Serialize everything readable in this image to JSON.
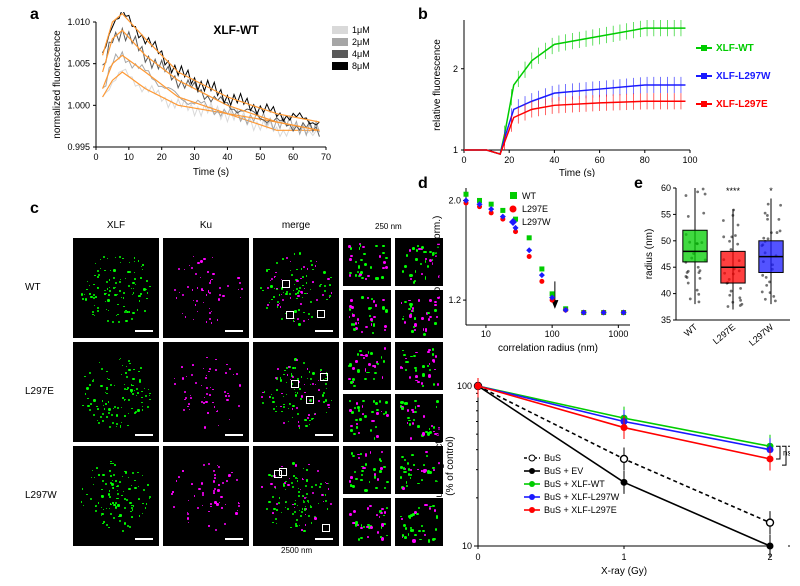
{
  "panel_a": {
    "label": "a",
    "title": "XLF-WT",
    "xlabel": "Time (s)",
    "ylabel": "normalized fluorescence",
    "xlim": [
      0,
      70
    ],
    "xtick_step": 10,
    "ylim": [
      0.995,
      1.01
    ],
    "yticks": [
      0.995,
      1.0,
      1.005,
      1.01
    ],
    "conc_labels": [
      "1μM",
      "2μM",
      "4μM",
      "8μM"
    ],
    "conc_colors": [
      "#d9d9d9",
      "#a6a6a6",
      "#595959",
      "#000000"
    ],
    "fit_color": "#ff9933",
    "series": {
      "1uM": [
        [
          2,
          1.001
        ],
        [
          5,
          1.003
        ],
        [
          8,
          1.004
        ],
        [
          15,
          1.002
        ],
        [
          25,
          1.0
        ],
        [
          40,
          0.999
        ],
        [
          55,
          0.997
        ],
        [
          68,
          0.997
        ]
      ],
      "2uM": [
        [
          2,
          1.002
        ],
        [
          5,
          1.005
        ],
        [
          8,
          1.006
        ],
        [
          15,
          1.004
        ],
        [
          25,
          1.001
        ],
        [
          40,
          0.999
        ],
        [
          55,
          0.998
        ],
        [
          68,
          0.997
        ]
      ],
      "4uM": [
        [
          2,
          1.004
        ],
        [
          5,
          1.008
        ],
        [
          8,
          1.009
        ],
        [
          15,
          1.006
        ],
        [
          25,
          1.003
        ],
        [
          40,
          1.0
        ],
        [
          55,
          0.998
        ],
        [
          68,
          0.997
        ]
      ],
      "8uM": [
        [
          2,
          1.006
        ],
        [
          5,
          1.01
        ],
        [
          8,
          1.011
        ],
        [
          15,
          1.008
        ],
        [
          25,
          1.004
        ],
        [
          40,
          1.001
        ],
        [
          55,
          0.999
        ],
        [
          68,
          0.998
        ]
      ]
    },
    "title_fontsize": 11,
    "label_fontsize": 10
  },
  "panel_b": {
    "label": "b",
    "xlabel": "Time (s)",
    "ylabel": "relative fluorescence",
    "xlim": [
      0,
      100
    ],
    "xtick_step": 20,
    "ylim": [
      1,
      2.6
    ],
    "yticks": [
      1,
      2
    ],
    "legend": [
      {
        "name": "XLF-WT",
        "color": "#00cc00"
      },
      {
        "name": "XLF-L297W",
        "color": "#1a1aff"
      },
      {
        "name": "XLF-L297E",
        "color": "#ff0000"
      }
    ],
    "series": {
      "WT": [
        [
          0,
          1.0
        ],
        [
          5,
          1.0
        ],
        [
          10,
          1.0
        ],
        [
          16,
          0.95
        ],
        [
          18,
          1.2
        ],
        [
          22,
          1.8
        ],
        [
          30,
          2.1
        ],
        [
          40,
          2.3
        ],
        [
          60,
          2.4
        ],
        [
          80,
          2.5
        ],
        [
          98,
          2.5
        ]
      ],
      "L297W": [
        [
          0,
          1.0
        ],
        [
          5,
          1.0
        ],
        [
          10,
          1.0
        ],
        [
          16,
          0.95
        ],
        [
          18,
          1.15
        ],
        [
          22,
          1.5
        ],
        [
          30,
          1.6
        ],
        [
          40,
          1.7
        ],
        [
          60,
          1.75
        ],
        [
          80,
          1.8
        ],
        [
          98,
          1.8
        ]
      ],
      "L297E": [
        [
          0,
          1.0
        ],
        [
          5,
          1.0
        ],
        [
          10,
          1.0
        ],
        [
          16,
          0.95
        ],
        [
          18,
          1.1
        ],
        [
          22,
          1.4
        ],
        [
          30,
          1.5
        ],
        [
          40,
          1.55
        ],
        [
          60,
          1.58
        ],
        [
          80,
          1.6
        ],
        [
          98,
          1.6
        ]
      ]
    },
    "err": 0.1
  },
  "panel_c": {
    "label": "c",
    "row_labels": [
      "WT",
      "L297E",
      "L297W"
    ],
    "col_labels": [
      "XLF",
      "Ku",
      "merge"
    ],
    "xlf_color": "#00ff00",
    "ku_color": "#ff00ff",
    "scalebar_large": "2500 nm",
    "scalebar_small": "250 nm"
  },
  "panel_d": {
    "label": "d",
    "xlabel": "correlation radius (nm)",
    "ylabel": "correlation (norm.)",
    "xticks": [
      10,
      100,
      1000
    ],
    "ylim": [
      1.0,
      2.1
    ],
    "yticks": [
      1.2,
      2.0
    ],
    "legend": [
      {
        "name": "WT",
        "color": "#00cc00",
        "marker": "square"
      },
      {
        "name": "L297E",
        "color": "#ff0000",
        "marker": "circle"
      },
      {
        "name": "L297W",
        "color": "#1a1aff",
        "marker": "diamond"
      }
    ],
    "series": {
      "WT": [
        [
          5,
          2.05
        ],
        [
          8,
          2.0
        ],
        [
          12,
          1.97
        ],
        [
          18,
          1.92
        ],
        [
          28,
          1.85
        ],
        [
          45,
          1.7
        ],
        [
          70,
          1.45
        ],
        [
          100,
          1.25
        ],
        [
          160,
          1.13
        ],
        [
          300,
          1.1
        ],
        [
          600,
          1.1
        ],
        [
          1200,
          1.1
        ]
      ],
      "L297E": [
        [
          5,
          1.98
        ],
        [
          8,
          1.95
        ],
        [
          12,
          1.9
        ],
        [
          18,
          1.85
        ],
        [
          28,
          1.75
        ],
        [
          45,
          1.55
        ],
        [
          70,
          1.35
        ],
        [
          100,
          1.2
        ],
        [
          160,
          1.12
        ],
        [
          300,
          1.1
        ],
        [
          600,
          1.1
        ],
        [
          1200,
          1.1
        ]
      ],
      "L297W": [
        [
          5,
          2.0
        ],
        [
          8,
          1.97
        ],
        [
          12,
          1.93
        ],
        [
          18,
          1.87
        ],
        [
          28,
          1.78
        ],
        [
          45,
          1.6
        ],
        [
          70,
          1.4
        ],
        [
          100,
          1.22
        ],
        [
          160,
          1.12
        ],
        [
          300,
          1.1
        ],
        [
          600,
          1.1
        ],
        [
          1200,
          1.1
        ]
      ]
    }
  },
  "panel_e": {
    "label": "e",
    "ylabel": "radius (nm)",
    "ylim": [
      35,
      60
    ],
    "ytick_step": 5,
    "cats": [
      "WT",
      "L297E",
      "L297W"
    ],
    "colors": [
      "#00cc00",
      "#ff0000",
      "#1a1aff"
    ],
    "boxes": [
      {
        "median": 48,
        "q1": 46,
        "q3": 52,
        "lo": 38,
        "hi": 60,
        "sig": ""
      },
      {
        "median": 45,
        "q1": 42,
        "q3": 48,
        "lo": 37,
        "hi": 56,
        "sig": "****"
      },
      {
        "median": 47,
        "q1": 44,
        "q3": 50,
        "lo": 38,
        "hi": 58,
        "sig": "*"
      }
    ]
  },
  "panel_f": {
    "label": "f",
    "xlabel": "X-ray (Gy)",
    "ylabel": "Surviving fraction\n(% of control)",
    "xlim": [
      0,
      2
    ],
    "xticks": [
      0,
      1,
      2
    ],
    "ylim": [
      10,
      100
    ],
    "yticks": [
      10,
      100
    ],
    "legend": [
      {
        "name": "BuS",
        "color": "#000000",
        "dash": true
      },
      {
        "name": "BuS + EV",
        "color": "#000000",
        "dash": false
      },
      {
        "name": "BuS + XLF-WT",
        "color": "#00cc00",
        "dash": false
      },
      {
        "name": "BuS + XLF-L297W",
        "color": "#1a1aff",
        "dash": false
      },
      {
        "name": "BuS + XLF-L297E",
        "color": "#ff0000",
        "dash": false
      }
    ],
    "series": {
      "BuS": [
        [
          0,
          100
        ],
        [
          1,
          35
        ],
        [
          2,
          14
        ]
      ],
      "EV": [
        [
          0,
          100
        ],
        [
          1,
          25
        ],
        [
          2,
          10
        ]
      ],
      "WT": [
        [
          0,
          100
        ],
        [
          1,
          63
        ],
        [
          2,
          42
        ]
      ],
      "L297W": [
        [
          0,
          100
        ],
        [
          1,
          60
        ],
        [
          2,
          40
        ]
      ],
      "L297E": [
        [
          0,
          100
        ],
        [
          1,
          55
        ],
        [
          2,
          35
        ]
      ]
    },
    "sig": [
      "ns",
      "*",
      "***"
    ]
  }
}
